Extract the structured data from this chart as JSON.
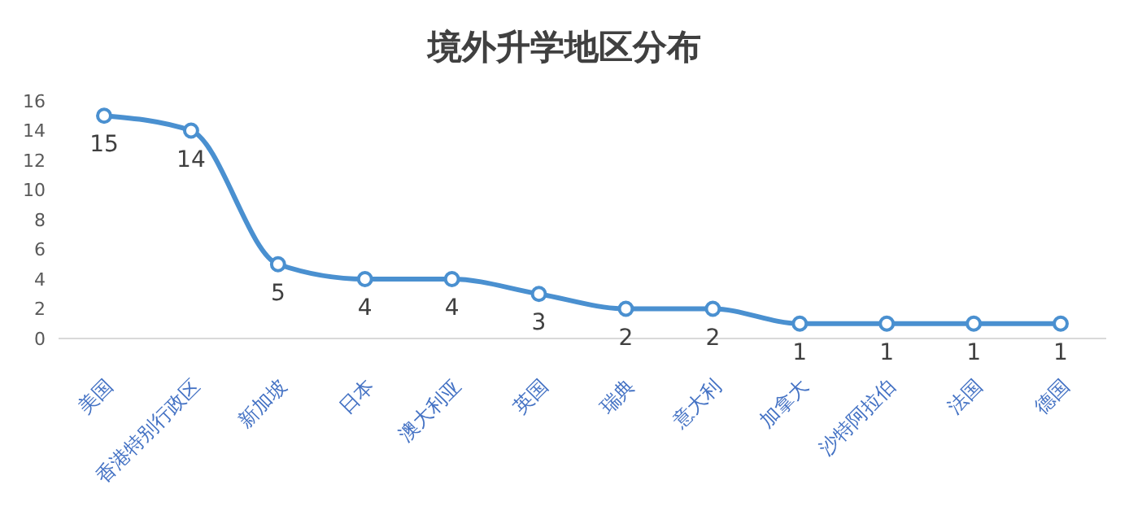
{
  "chart_data": {
    "type": "line",
    "title": "境外升学地区分布",
    "categories": [
      "美国",
      "香港特别行政区",
      "新加坡",
      "日本",
      "澳大利亚",
      "英国",
      "瑞典",
      "意大利",
      "加拿大",
      "沙特阿拉伯",
      "法国",
      "德国"
    ],
    "series": [
      {
        "color": "#4a90d0",
        "values": [
          15,
          14,
          5,
          4,
          4,
          3,
          2,
          2,
          1,
          1,
          1,
          1
        ]
      }
    ],
    "ylim": [
      0,
      16
    ],
    "yticks": [
      0,
      2,
      4,
      6,
      8,
      10,
      12,
      14,
      16
    ],
    "marker": "circle",
    "data_labels": true,
    "grid": false
  }
}
